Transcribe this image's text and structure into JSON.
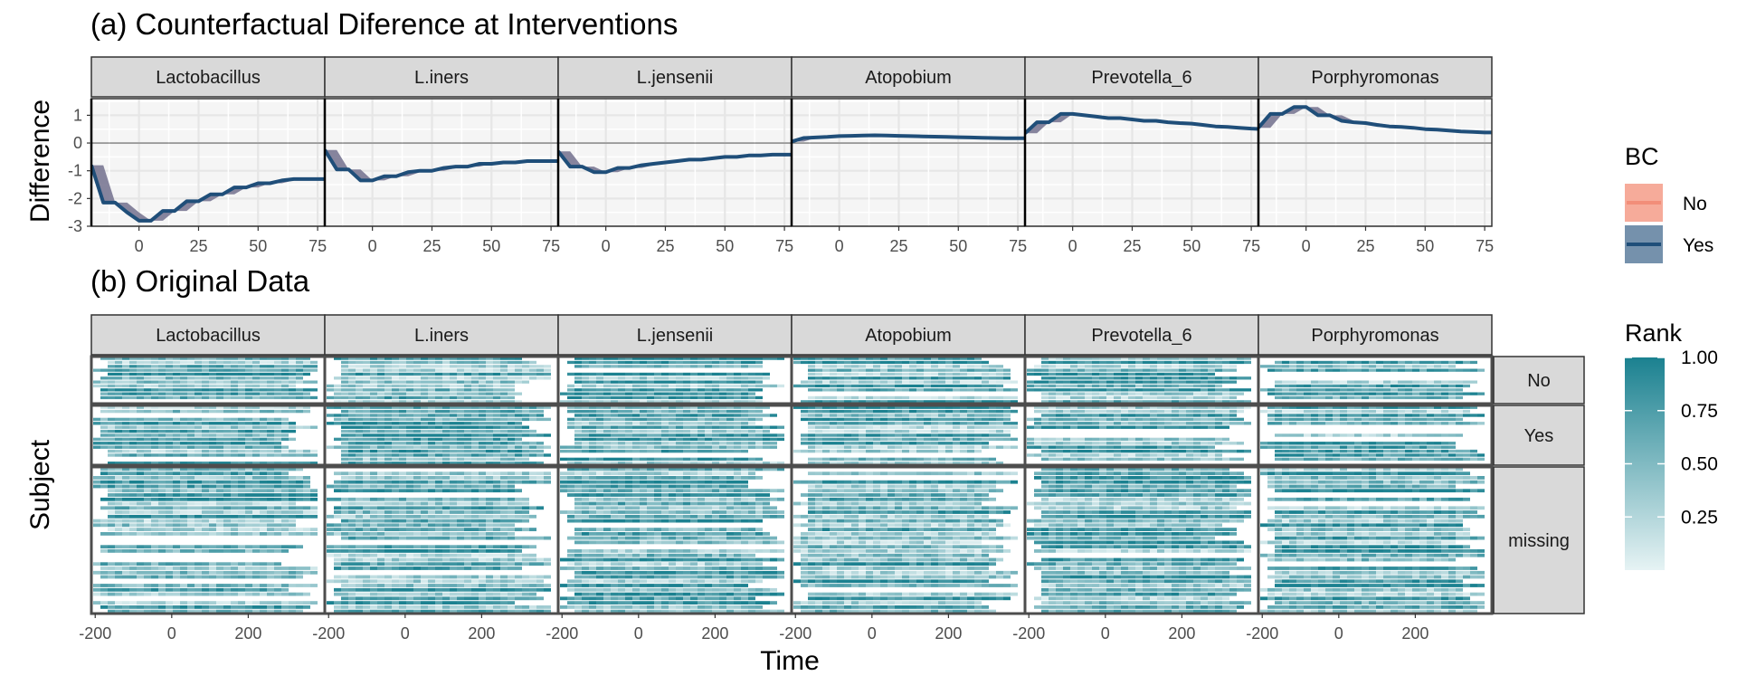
{
  "chart_data": [
    {
      "type": "area",
      "title": "(a) Counterfactual Diference at Interventions",
      "ylabel": "Difference",
      "xlabel": "",
      "facets": [
        "Lactobacillus",
        "L.iners",
        "L.jensenii",
        "Atopobium",
        "Prevotella_6",
        "Porphyromonas"
      ],
      "x": [
        -20,
        -15,
        -10,
        -5,
        0,
        5,
        10,
        15,
        20,
        25,
        30,
        35,
        40,
        45,
        50,
        55,
        60,
        65,
        70,
        75,
        80
      ],
      "xlim": [
        -20,
        78
      ],
      "xticks": [
        "0",
        "25",
        "50",
        "75"
      ],
      "ylim": [
        -3,
        1.6
      ],
      "yticks": [
        "1",
        "0",
        "-1",
        "-2",
        "-3"
      ],
      "grid": true,
      "legend": {
        "title": "BC",
        "position": "right",
        "entries": [
          "No",
          "Yes"
        ]
      },
      "colors": {
        "No": "#f28e79",
        "Yes": "#1f4e79",
        "ribbon": "#7a7893",
        "no_fill": "#f6ab9a",
        "yes_fill": "#7591ac"
      },
      "series": [
        {
          "name": "Yes",
          "facet": "Lactobacillus",
          "values": [
            -0.8,
            -2.15,
            -2.15,
            -2.5,
            -2.8,
            -2.8,
            -2.45,
            -2.45,
            -2.1,
            -2.1,
            -1.85,
            -1.85,
            -1.6,
            -1.6,
            -1.45,
            -1.45,
            -1.35,
            -1.3,
            -1.3,
            -1.3,
            -1.3
          ]
        },
        {
          "name": "Yes",
          "facet": "L.iners",
          "values": [
            -0.25,
            -0.95,
            -0.95,
            -1.35,
            -1.35,
            -1.2,
            -1.2,
            -1.05,
            -1.0,
            -1.0,
            -0.9,
            -0.85,
            -0.85,
            -0.75,
            -0.75,
            -0.7,
            -0.7,
            -0.65,
            -0.65,
            -0.65,
            -0.65
          ]
        },
        {
          "name": "Yes",
          "facet": "L.jensenii",
          "values": [
            -0.3,
            -0.85,
            -0.85,
            -1.05,
            -1.05,
            -0.9,
            -0.9,
            -0.8,
            -0.75,
            -0.7,
            -0.65,
            -0.6,
            -0.6,
            -0.55,
            -0.5,
            -0.5,
            -0.45,
            -0.45,
            -0.42,
            -0.42,
            -0.42
          ]
        },
        {
          "name": "Yes",
          "facet": "Atopobium",
          "values": [
            0.05,
            0.18,
            0.2,
            0.22,
            0.25,
            0.26,
            0.27,
            0.28,
            0.27,
            0.26,
            0.25,
            0.24,
            0.23,
            0.22,
            0.21,
            0.2,
            0.19,
            0.18,
            0.17,
            0.17,
            0.17
          ]
        },
        {
          "name": "Yes",
          "facet": "Prevotella_6",
          "values": [
            0.35,
            0.75,
            0.75,
            1.05,
            1.05,
            1.0,
            0.95,
            0.9,
            0.9,
            0.85,
            0.8,
            0.8,
            0.75,
            0.72,
            0.7,
            0.65,
            0.6,
            0.58,
            0.55,
            0.52,
            0.5
          ]
        },
        {
          "name": "Yes",
          "facet": "Porphyromonas",
          "values": [
            0.55,
            1.05,
            1.05,
            1.3,
            1.3,
            1.0,
            1.0,
            0.8,
            0.75,
            0.72,
            0.65,
            0.6,
            0.58,
            0.55,
            0.5,
            0.48,
            0.45,
            0.42,
            0.4,
            0.38,
            0.38
          ]
        }
      ]
    },
    {
      "type": "heatmap",
      "title": "(b) Original Data",
      "xlabel": "Time",
      "ylabel": "Subject",
      "facets": [
        "Lactobacillus",
        "L.iners",
        "L.jensenii",
        "Atopobium",
        "Prevotella_6",
        "Porphyromonas"
      ],
      "row_groups": [
        "No",
        "Yes",
        "missing"
      ],
      "x_range": [
        -210,
        400
      ],
      "xticks": [
        "-200",
        "0",
        "200"
      ],
      "legend": {
        "title": "Rank",
        "position": "right",
        "ticks": [
          "1.00",
          "0.75",
          "0.50",
          "0.25"
        ],
        "range": [
          0,
          1
        ]
      },
      "colors": {
        "low": "#e6f3f4",
        "high": "#1b8190"
      }
    }
  ]
}
